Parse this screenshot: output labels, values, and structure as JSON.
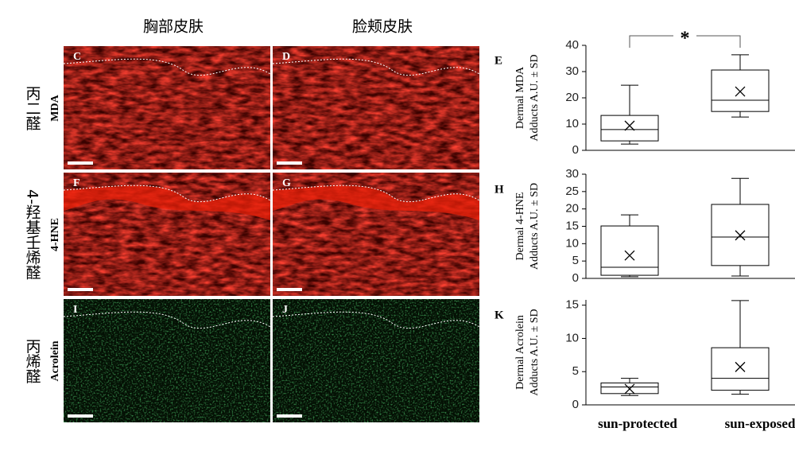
{
  "columns": [
    "胸部皮肤",
    "脸颊皮肤"
  ],
  "rows": [
    {
      "label_zh": "丙二醛",
      "label_en": "MDA",
      "cells": [
        {
          "letter": "C"
        },
        {
          "letter": "D"
        }
      ]
    },
    {
      "label_zh": "4-羟基壬烯醛",
      "label_en": "4-HNE",
      "cells": [
        {
          "letter": "F"
        },
        {
          "letter": "G"
        }
      ]
    },
    {
      "label_zh": "丙烯醛",
      "label_en": "Acrolein",
      "cells": [
        {
          "letter": "I"
        },
        {
          "letter": "J"
        }
      ]
    }
  ],
  "chart_data": [
    {
      "type": "box",
      "panel": "E",
      "ylabel": [
        "Dermal MDA",
        "Adducts A.U. ± SD"
      ],
      "ylim": [
        0,
        40
      ],
      "yticks": [
        0,
        10,
        20,
        30,
        40
      ],
      "annotation": "*",
      "boxes": [
        {
          "whisker_low": 2.4,
          "q1": 3.6,
          "median": 7.9,
          "q3": 13.3,
          "whisker_high": 24.8,
          "mean": 9.4
        },
        {
          "whisker_low": 12.7,
          "q1": 14.8,
          "median": 19.1,
          "q3": 30.6,
          "whisker_high": 36.4,
          "mean": 22.4
        }
      ]
    },
    {
      "type": "box",
      "panel": "H",
      "ylabel": [
        "Dermal 4-HNE",
        "Adducts A.U. ± SD"
      ],
      "ylim": [
        0,
        30
      ],
      "yticks": [
        0,
        5,
        10,
        15,
        20,
        25,
        30
      ],
      "boxes": [
        {
          "whisker_low": 0.5,
          "q1": 0.9,
          "median": 3.2,
          "q3": 15.1,
          "whisker_high": 18.3,
          "mean": 6.6
        },
        {
          "whisker_low": 0.7,
          "q1": 3.7,
          "median": 11.9,
          "q3": 21.3,
          "whisker_high": 28.8,
          "mean": 12.4
        }
      ]
    },
    {
      "type": "box",
      "panel": "K",
      "ylabel": [
        "Dermal Acrolein",
        "Adducts A.U. ± SD"
      ],
      "ylim": [
        0,
        15.8
      ],
      "yticks": [
        0,
        5,
        10,
        15
      ],
      "categories": [
        "sun-protected",
        "sun-exposed"
      ],
      "boxes": [
        {
          "whisker_low": 1.4,
          "q1": 1.7,
          "median": 2.7,
          "q3": 3.3,
          "whisker_high": 4.0,
          "mean": 2.4
        },
        {
          "whisker_low": 1.6,
          "q1": 2.2,
          "median": 4.0,
          "q3": 8.6,
          "whisker_high": 15.7,
          "mean": 5.7
        }
      ]
    }
  ]
}
